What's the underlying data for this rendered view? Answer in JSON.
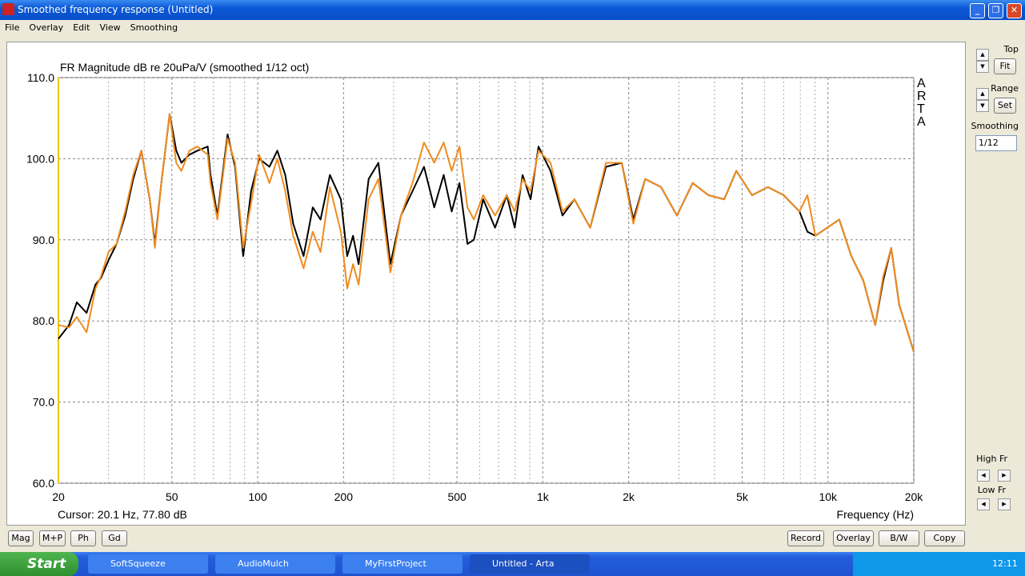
{
  "window": {
    "title": "Smoothed frequency response (Untitled)"
  },
  "menu": [
    "File",
    "Overlay",
    "Edit",
    "View",
    "Smoothing"
  ],
  "side_panel": {
    "top": "Top",
    "fit": "Fit",
    "range": "Range",
    "set": "Set",
    "smoothing": "Smoothing",
    "smoothing_value": "1/12",
    "high_fr": "High Fr",
    "low_fr": "Low Fr"
  },
  "view_buttons": [
    "Mag",
    "M+P",
    "Ph",
    "Gd"
  ],
  "action_buttons": [
    "Record",
    "Overlay",
    "B/W",
    "Copy"
  ],
  "taskbar": {
    "start": "Start",
    "tasks": [
      "SoftSqueeze",
      "AudioMulch",
      "MyFirstProject",
      "Untitled - Arta"
    ],
    "clock": "12:11"
  },
  "chart_data": {
    "type": "line",
    "title": "FR Magnitude dB re 20uPa/V (smoothed 1/12 oct)",
    "logo": "ARTA",
    "cursor": "Cursor: 20.1 Hz, 77.80 dB",
    "x_label": "Frequency (Hz)",
    "xscale": "log",
    "grid": true,
    "xlim": [
      20,
      20000
    ],
    "ylim": [
      60,
      110
    ],
    "xticks": [
      20,
      50,
      100,
      200,
      500,
      {
        "value": 1000,
        "label": "1k"
      },
      {
        "value": 2000,
        "label": "2k"
      },
      {
        "value": 5000,
        "label": "5k"
      },
      {
        "value": 10000,
        "label": "10k"
      },
      {
        "value": 20000,
        "label": "20k"
      }
    ],
    "xminor": [
      30,
      40,
      60,
      70,
      80,
      90,
      300,
      400,
      600,
      700,
      800,
      900,
      3000,
      4000,
      6000,
      7000,
      8000,
      9000
    ],
    "yticks": [
      {
        "value": 60,
        "label": "60.0"
      },
      {
        "value": 70,
        "label": "70.0"
      },
      {
        "value": 80,
        "label": "80.0"
      },
      {
        "value": 90,
        "label": "90.0"
      },
      {
        "value": 100,
        "label": "100.0"
      },
      {
        "value": 110,
        "label": "110.0"
      }
    ],
    "x": [
      20,
      21.8,
      23.2,
      25.1,
      27,
      28.2,
      30,
      32,
      34.3,
      36.6,
      39.1,
      41.8,
      43.6,
      45.9,
      49.1,
      51.8,
      54,
      57.6,
      61.5,
      66.8,
      68.3,
      72.2,
      78.4,
      83.3,
      88.9,
      94.8,
      101.2,
      109.9,
      117.2,
      124.9,
      133.2,
      144.8,
      156,
      166.1,
      179.1,
      195.8,
      206,
      216,
      226,
      245,
      265,
      292,
      318,
      349,
      383,
      416,
      449,
      479,
      510,
      544,
      573,
      618,
      680,
      747,
      797,
      849,
      906,
      966,
      1064,
      1172,
      1291,
      1466,
      1665,
      1891,
      2077,
      2287,
      2599,
      2953,
      3355,
      3810,
      4328,
      4770,
      5420,
      6156,
      6994,
      7944,
      8472,
      9035,
      9952,
      10962,
      12074,
      13300,
      14648,
      15625,
      16666,
      17777,
      20000
    ],
    "series": [
      {
        "color": "#000000",
        "values": [
          77.8,
          79.5,
          82.3,
          81,
          84.5,
          85.3,
          87.5,
          89.5,
          93,
          97.5,
          101,
          95,
          89.5,
          97,
          105.5,
          101,
          99.5,
          100.5,
          101,
          101.5,
          98,
          93,
          103,
          99,
          88,
          96,
          100,
          99,
          101,
          98,
          92,
          88,
          94,
          92.5,
          98,
          95,
          88,
          90.5,
          87,
          97.5,
          99.5,
          87,
          93,
          96,
          99,
          94,
          98,
          93.5,
          97,
          89.5,
          90,
          95,
          91.5,
          95.5,
          91.5,
          98,
          95,
          101.5,
          98.5,
          93,
          95,
          91.5,
          99,
          99.5,
          92.5,
          97.5,
          96.5,
          93,
          97,
          95.5,
          95,
          98.5,
          95.5,
          96.5,
          95.5,
          93.5,
          91,
          90.5,
          91.5,
          92.5,
          88,
          85,
          79.5,
          85,
          89,
          82,
          76.2
        ]
      },
      {
        "color": "#f08c1e",
        "values": [
          79.5,
          79.2,
          80.5,
          78.6,
          84,
          85.5,
          88.5,
          89.5,
          93.5,
          98,
          101,
          95,
          89,
          97,
          105.5,
          99.5,
          98.5,
          101,
          101.5,
          100.5,
          97,
          92.5,
          102.5,
          99.5,
          89,
          94.5,
          100.5,
          97,
          100,
          96,
          90.5,
          86.5,
          91,
          88.5,
          96.5,
          91,
          84,
          87,
          84.5,
          95,
          97.5,
          86,
          93,
          97,
          102,
          99.5,
          102,
          98.5,
          101.5,
          94,
          92.5,
          95.5,
          93,
          95.5,
          93.5,
          97.5,
          96,
          101,
          99.5,
          93.5,
          95,
          91.5,
          99.5,
          99.5,
          92,
          97.5,
          96.5,
          93,
          97,
          95.5,
          95,
          98.5,
          95.5,
          96.5,
          95.5,
          93.5,
          95.5,
          90.5,
          91.5,
          92.5,
          88,
          85,
          79.5,
          85.5,
          89,
          82,
          76.2
        ]
      }
    ]
  }
}
